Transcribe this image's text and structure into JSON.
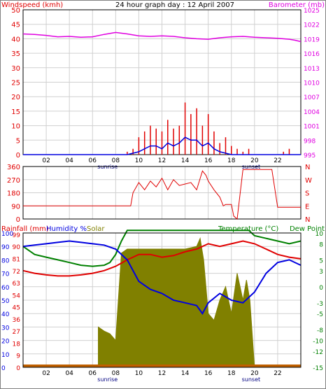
{
  "colors": {
    "red": "#e00000",
    "magenta": "#e000e0",
    "blue": "#0000e0",
    "green": "#008000",
    "olive": "#808000",
    "grid": "#d0d0d0",
    "frame": "#000000",
    "text": "#000000",
    "grey_text": "#000080"
  },
  "header": {
    "left_label": "Windspeed (kmh)",
    "title": "24 hour graph day : 12 April 2007",
    "right_label": "Barometer (mb)"
  },
  "bottom_labels": {
    "rainfall": "Rainfall (mm)",
    "humidity": "Humidity %",
    "solar": "Solar",
    "temperature": "Temperature (°C)",
    "dewpoint": "Dew Point"
  },
  "x_ticks": [
    "02",
    "04",
    "06",
    "08",
    "10",
    "12",
    "14",
    "16",
    "18",
    "20",
    "22"
  ],
  "sun_labels": {
    "sunrise": "sunrise",
    "sunset": "sunset"
  },
  "chart_data": [
    {
      "type": "line",
      "name": "wind-barometer",
      "x_range_hours": [
        0,
        24
      ],
      "left_axis": {
        "label": "Windspeed (kmh)",
        "ticks": [
          0,
          5,
          10,
          15,
          20,
          25,
          30,
          35,
          40,
          45,
          50
        ],
        "ylim": [
          0,
          50
        ]
      },
      "right_axis": {
        "label": "Barometer (mb)",
        "ticks": [
          995,
          998,
          1001,
          1004,
          1007,
          1010,
          1013,
          1016,
          1019,
          1022,
          1025
        ],
        "ylim": [
          995,
          1025
        ]
      },
      "barometer": {
        "x": [
          0,
          1,
          2,
          3,
          4,
          5,
          6,
          7,
          8,
          9,
          10,
          11,
          12,
          13,
          14,
          15,
          16,
          17,
          18,
          19,
          20,
          21,
          22,
          23,
          23.5,
          24
        ],
        "y": [
          1020.0,
          1019.9,
          1019.7,
          1019.4,
          1019.5,
          1019.3,
          1019.4,
          1019.9,
          1020.3,
          1020.0,
          1019.6,
          1019.5,
          1019.6,
          1019.5,
          1019.2,
          1019.0,
          1018.9,
          1019.2,
          1019.4,
          1019.5,
          1019.3,
          1019.2,
          1019.1,
          1018.9,
          1018.7,
          1018.4
        ]
      },
      "gust": {
        "x": [
          9.0,
          9.5,
          10.0,
          10.5,
          11.0,
          11.5,
          12.0,
          12.5,
          13.0,
          13.5,
          14.0,
          14.5,
          15.0,
          15.5,
          16.0,
          16.5,
          17.0,
          17.5,
          18.0,
          18.5,
          19.0,
          19.5,
          22.5,
          23.0
        ],
        "y": [
          1,
          2,
          6,
          8,
          10,
          9,
          8,
          12,
          9,
          10,
          18,
          14,
          16,
          10,
          14,
          8,
          4,
          6,
          3,
          2,
          1,
          2,
          1,
          2
        ]
      },
      "average": {
        "x": [
          0,
          9.0,
          10.0,
          10.5,
          11.0,
          11.5,
          12.0,
          12.5,
          13.0,
          13.5,
          14.0,
          14.5,
          15.0,
          15.5,
          16.0,
          16.5,
          17.0,
          18.0,
          24
        ],
        "y": [
          0,
          0,
          1,
          2,
          3,
          3,
          2,
          4,
          3,
          4,
          6,
          5,
          5,
          3,
          4,
          2,
          1,
          0,
          0
        ]
      }
    },
    {
      "type": "line",
      "name": "wind-direction",
      "x_range_hours": [
        0,
        24
      ],
      "left_axis": {
        "ticks": [
          0,
          90,
          180,
          270,
          360
        ],
        "ylim": [
          0,
          360
        ]
      },
      "right_axis": {
        "ticks": [
          "N",
          "E",
          "S",
          "W",
          "N"
        ]
      },
      "direction": {
        "x": [
          0,
          9.3,
          9.5,
          10.0,
          10.5,
          11.0,
          11.5,
          12.0,
          12.5,
          13.0,
          13.5,
          14.0,
          14.5,
          15.0,
          15.5,
          15.8,
          16.0,
          16.5,
          17.0,
          17.3,
          17.5,
          18.0,
          18.2,
          18.5,
          19.0,
          19.2,
          21.5,
          22.0,
          24
        ],
        "y": [
          90,
          90,
          180,
          250,
          200,
          260,
          220,
          280,
          200,
          270,
          230,
          240,
          250,
          200,
          330,
          300,
          260,
          200,
          150,
          90,
          100,
          100,
          20,
          0,
          340,
          340,
          340,
          80,
          80
        ]
      }
    },
    {
      "type": "line",
      "name": "rain-humidity-solar-temperature",
      "x_range_hours": [
        0,
        24
      ],
      "left_axis": {
        "label": "Rainfall (mm) / Humidity %",
        "ticks": [
          0,
          9,
          18,
          27,
          36,
          45,
          54,
          63,
          72,
          81,
          90,
          99
        ],
        "extra_ticks": [
          0,
          10,
          20,
          30,
          40,
          50,
          60,
          70,
          80,
          90,
          100
        ],
        "ylim": [
          0,
          100
        ]
      },
      "right_axis": {
        "label": "Temperature (°C) / Dew Point",
        "ticks": [
          -15,
          -12,
          -10,
          -8,
          -5,
          -3,
          0,
          3,
          5,
          8,
          10
        ],
        "ylim": [
          -15,
          10
        ]
      },
      "humidity": {
        "x": [
          0,
          1,
          2,
          3,
          4,
          5,
          6,
          7,
          8,
          9,
          10,
          11,
          12,
          13,
          14,
          15,
          15.5,
          16,
          17,
          18,
          19,
          20,
          21,
          22,
          23,
          24
        ],
        "y": [
          90,
          91,
          92,
          93,
          94,
          93,
          92,
          91,
          88,
          80,
          64,
          58,
          55,
          50,
          48,
          46,
          40,
          48,
          55,
          50,
          48,
          56,
          70,
          78,
          80,
          76
        ]
      },
      "temperature": {
        "x": [
          0,
          1,
          2,
          3,
          4,
          5,
          6,
          7,
          8,
          9,
          10,
          11,
          12,
          13,
          14,
          15,
          16,
          17,
          18,
          19,
          20,
          21,
          22,
          23,
          24
        ],
        "y": [
          3.0,
          2.5,
          2.2,
          2.0,
          2.0,
          2.2,
          2.5,
          3.0,
          3.8,
          5.0,
          6.0,
          6.0,
          5.5,
          5.8,
          6.5,
          7.0,
          8.0,
          7.5,
          8.0,
          8.5,
          8.0,
          7.0,
          6.0,
          5.5,
          5.2
        ]
      },
      "dewpoint": {
        "x": [
          0,
          1,
          2,
          3,
          4,
          5,
          6,
          7,
          7.5,
          8,
          8.5,
          9,
          19.5,
          20,
          21,
          22,
          23,
          24
        ],
        "y": [
          7.5,
          6.0,
          5.5,
          5.0,
          4.5,
          4.0,
          3.8,
          4.0,
          4.5,
          6.0,
          8.5,
          10.5,
          10.5,
          9.5,
          9.0,
          8.5,
          8.0,
          8.5
        ]
      },
      "solar": {
        "x": [
          6.5,
          7.0,
          7.5,
          8.0,
          8.5,
          9.0,
          9.5,
          10.0,
          11.0,
          12.0,
          13.0,
          14.0,
          15.0,
          15.3,
          15.6,
          16.0,
          16.5,
          17.0,
          17.5,
          18.0,
          18.5,
          19.0,
          19.3,
          19.6,
          20.0
        ],
        "y": [
          30,
          27,
          25,
          20,
          85,
          88,
          88,
          88,
          88,
          88,
          88,
          88,
          90,
          96,
          80,
          40,
          35,
          50,
          60,
          40,
          70,
          50,
          65,
          50,
          0
        ]
      },
      "rainfall": {
        "x": [
          0,
          24
        ],
        "y": [
          0,
          0
        ]
      }
    }
  ]
}
